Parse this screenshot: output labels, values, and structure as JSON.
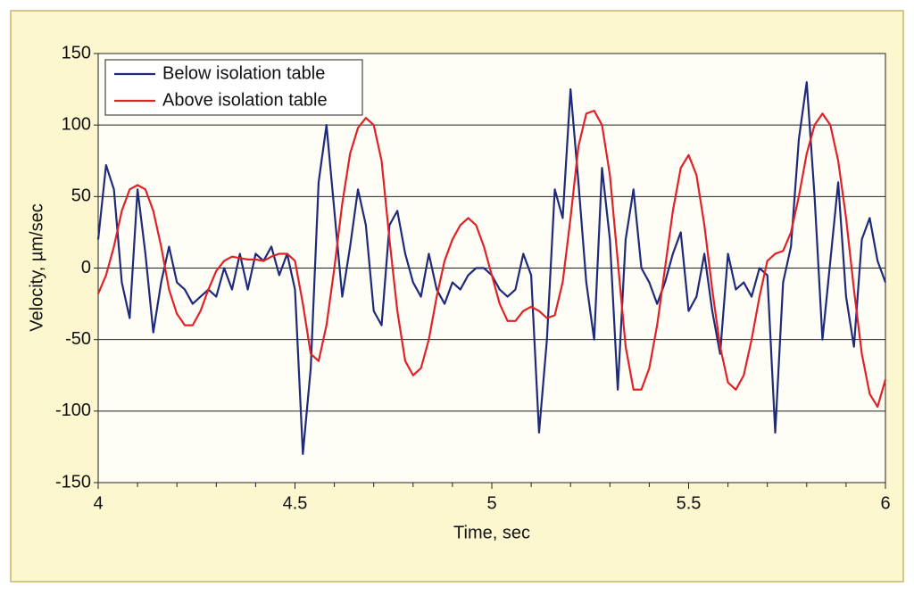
{
  "chart_data": {
    "type": "line",
    "x_label": "Time, sec",
    "y_label": "Velocity, µm/sec",
    "x": [
      4.0,
      4.02,
      4.04,
      4.06,
      4.08,
      4.1,
      4.12,
      4.14,
      4.16,
      4.18,
      4.2,
      4.22,
      4.24,
      4.26,
      4.28,
      4.3,
      4.32,
      4.34,
      4.36,
      4.38,
      4.4,
      4.42,
      4.44,
      4.46,
      4.48,
      4.5,
      4.52,
      4.54,
      4.56,
      4.58,
      4.6,
      4.62,
      4.64,
      4.66,
      4.68,
      4.7,
      4.72,
      4.74,
      4.76,
      4.78,
      4.8,
      4.82,
      4.84,
      4.86,
      4.88,
      4.9,
      4.92,
      4.94,
      4.96,
      4.98,
      5.0,
      5.02,
      5.04,
      5.06,
      5.08,
      5.1,
      5.12,
      5.14,
      5.16,
      5.18,
      5.2,
      5.22,
      5.24,
      5.26,
      5.28,
      5.3,
      5.32,
      5.34,
      5.36,
      5.38,
      5.4,
      5.42,
      5.44,
      5.46,
      5.48,
      5.5,
      5.52,
      5.54,
      5.56,
      5.58,
      5.6,
      5.62,
      5.64,
      5.66,
      5.68,
      5.7,
      5.72,
      5.74,
      5.76,
      5.78,
      5.8,
      5.82,
      5.84,
      5.86,
      5.88,
      5.9,
      5.92,
      5.94,
      5.96,
      5.98,
      6.0
    ],
    "series": [
      {
        "name": "Below isolation table",
        "color": "#1f2a7a",
        "values": [
          20,
          72,
          55,
          -10,
          -35,
          55,
          10,
          -45,
          -10,
          15,
          -10,
          -15,
          -25,
          -20,
          -15,
          -20,
          0,
          -15,
          10,
          -15,
          10,
          5,
          15,
          -5,
          10,
          -15,
          -130,
          -70,
          60,
          100,
          40,
          -20,
          15,
          55,
          30,
          -30,
          -40,
          30,
          40,
          10,
          -10,
          -20,
          10,
          -15,
          -25,
          -10,
          -15,
          -5,
          0,
          0,
          -5,
          -15,
          -20,
          -15,
          10,
          -5,
          -115,
          -50,
          55,
          35,
          125,
          60,
          -10,
          -50,
          70,
          20,
          -85,
          20,
          55,
          0,
          -10,
          -25,
          -10,
          10,
          25,
          -30,
          -20,
          10,
          -30,
          -60,
          10,
          -15,
          -10,
          -20,
          0,
          -5,
          -115,
          -10,
          15,
          90,
          130,
          50,
          -50,
          5,
          60,
          -20,
          -55,
          20,
          35,
          5,
          -10
        ]
      },
      {
        "name": "Above isolation table",
        "color": "#e02228",
        "values": [
          -18,
          -5,
          15,
          40,
          55,
          58,
          55,
          40,
          15,
          -15,
          -32,
          -40,
          -40,
          -30,
          -15,
          -2,
          5,
          8,
          7,
          6,
          6,
          5,
          8,
          10,
          10,
          5,
          -25,
          -60,
          -65,
          -40,
          0,
          45,
          80,
          98,
          105,
          100,
          75,
          20,
          -30,
          -65,
          -75,
          -70,
          -50,
          -20,
          5,
          20,
          30,
          35,
          30,
          15,
          -5,
          -25,
          -37,
          -37,
          -30,
          -27,
          -30,
          -35,
          -33,
          -10,
          35,
          85,
          108,
          110,
          100,
          65,
          5,
          -55,
          -85,
          -85,
          -70,
          -40,
          0,
          40,
          70,
          79,
          65,
          30,
          -15,
          -55,
          -80,
          -85,
          -75,
          -50,
          -20,
          5,
          10,
          12,
          25,
          50,
          80,
          100,
          108,
          100,
          75,
          35,
          -15,
          -60,
          -88,
          -97,
          -78
        ]
      }
    ],
    "xlim": [
      4,
      6
    ],
    "xticks": [
      4,
      4.5,
      5,
      5.5,
      6
    ],
    "xminorticks": [
      4.1,
      4.2,
      4.3,
      4.4,
      4.6,
      4.7,
      4.8,
      4.9,
      5.1,
      5.2,
      5.3,
      5.4,
      5.6,
      5.7,
      5.8,
      5.9
    ],
    "ylim": [
      -150,
      150
    ],
    "yticks": [
      -150,
      -100,
      -50,
      0,
      50,
      100,
      150
    ],
    "grid": true,
    "legend": "upper left"
  }
}
